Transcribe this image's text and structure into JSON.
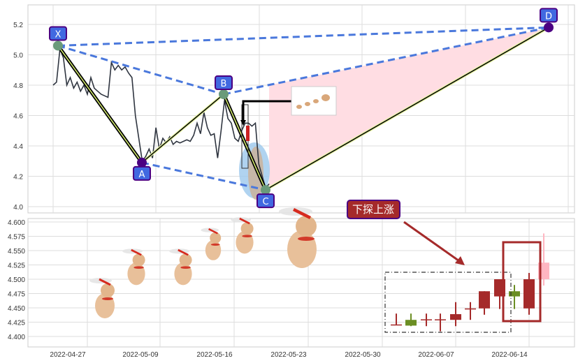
{
  "chart_data": [
    {
      "type": "line",
      "title": "",
      "ylim": [
        3.97,
        5.33
      ],
      "yticks": [
        "4.0",
        "4.2",
        "4.4",
        "4.6",
        "4.8",
        "5.0",
        "5.2"
      ],
      "grid": true,
      "series": [
        {
          "values": [
            4.8,
            4.82,
            5.04,
            4.98,
            4.8,
            4.85,
            4.78,
            4.82,
            4.76,
            4.8,
            4.74,
            4.85,
            4.78,
            4.76,
            4.74,
            4.73,
            4.72,
            4.95,
            4.9,
            4.93,
            4.9,
            4.92,
            4.88,
            4.85,
            4.6,
            4.45,
            4.3,
            4.33,
            4.38,
            4.32,
            4.52,
            4.38,
            4.45,
            4.42,
            4.46,
            4.41,
            4.43,
            4.42,
            4.43,
            4.44,
            4.43,
            4.47,
            4.55,
            4.48,
            4.62,
            4.52,
            4.47,
            4.48,
            4.32,
            4.5,
            4.7,
            4.58,
            4.55,
            4.45,
            4.43,
            4.5,
            4.55,
            4.55,
            4.53,
            4.55,
            4.28,
            4.2,
            4.12,
            4.15
          ]
        }
      ],
      "pattern_points": [
        {
          "label": "X",
          "price": 5.06
        },
        {
          "label": "A",
          "price": 4.29
        },
        {
          "label": "B",
          "price": 4.74
        },
        {
          "label": "C",
          "price": 4.11
        },
        {
          "label": "D",
          "price": 5.18
        }
      ],
      "colors": {
        "price_line": "#2f3540",
        "dashed": "#4a78dc",
        "label_bg": "#4169e1",
        "label_border": "#4b0082",
        "fill": "#ffdde3"
      }
    },
    {
      "type": "candlestick",
      "ylim": [
        4.39,
        4.607
      ],
      "yticks": [
        "4.400",
        "4.425",
        "4.450",
        "4.475",
        "4.500",
        "4.525",
        "4.550",
        "4.575",
        "4.600"
      ],
      "xticks": [
        "2022-04-27",
        "2022-05-09",
        "2022-05-16",
        "2022-05-23",
        "2022-05-30",
        "2022-06-07",
        "2022-06-14"
      ],
      "grid": true,
      "candles": [
        {
          "open": 4.421,
          "close": 4.421,
          "high": 4.44,
          "low": 4.42
        },
        {
          "open": 4.429,
          "close": 4.419,
          "high": 4.44,
          "low": 4.418
        },
        {
          "open": 4.43,
          "close": 4.43,
          "high": 4.44,
          "low": 4.418
        },
        {
          "open": 4.43,
          "close": 4.43,
          "high": 4.44,
          "low": 4.409
        },
        {
          "open": 4.429,
          "close": 4.439,
          "high": 4.46,
          "low": 4.418
        },
        {
          "open": 4.449,
          "close": 4.449,
          "high": 4.46,
          "low": 4.429
        },
        {
          "open": 4.449,
          "close": 4.479,
          "high": 4.479,
          "low": 4.438
        },
        {
          "open": 4.47,
          "close": 4.5,
          "high": 4.5,
          "low": 4.448
        },
        {
          "open": 4.479,
          "close": 4.47,
          "high": 4.49,
          "low": 4.448
        },
        {
          "open": 4.449,
          "close": 4.5,
          "high": 4.511,
          "low": 4.438
        },
        {
          "open": 4.5,
          "close": 4.529,
          "high": 4.58,
          "low": 4.489
        }
      ],
      "colors": {
        "up": "#a52a2a",
        "down": "#6b8e23",
        "forecast": "#ffb6c1"
      },
      "annotation": "下探上涨"
    }
  ]
}
